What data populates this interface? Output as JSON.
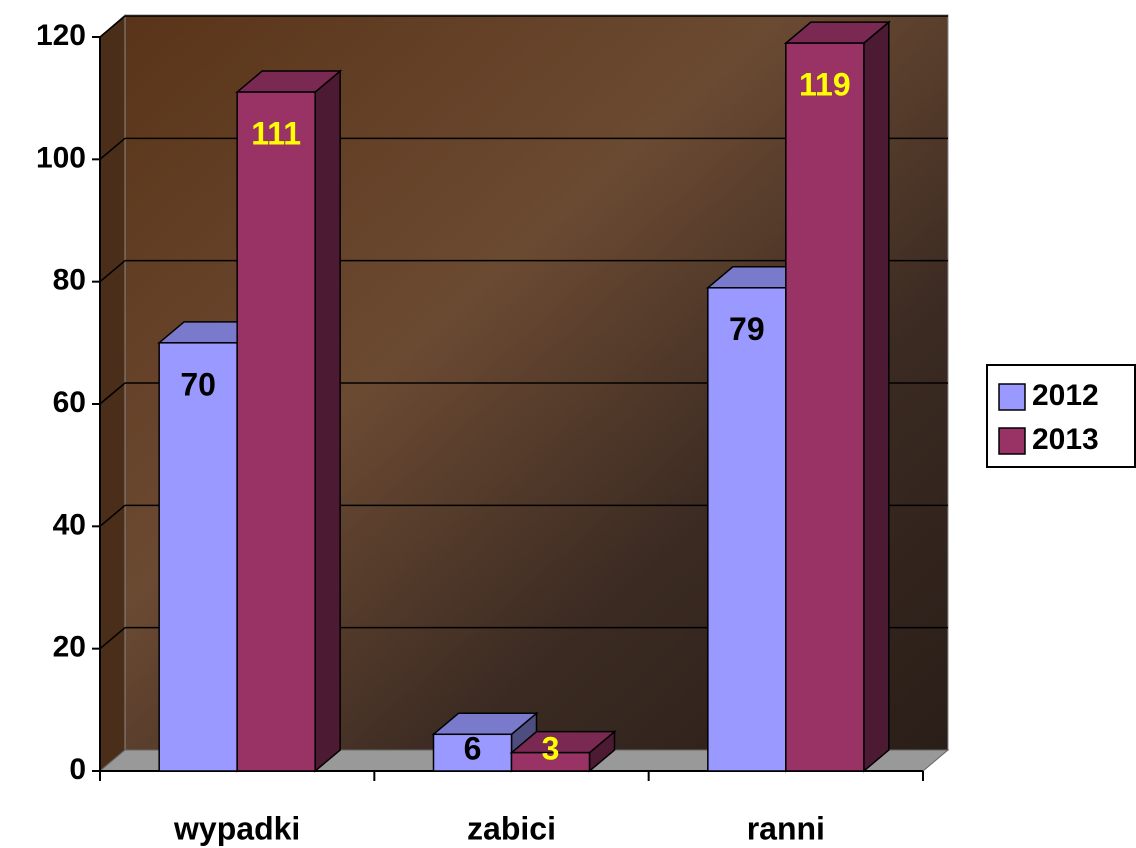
{
  "chart_data": {
    "type": "bar3d",
    "categories": [
      "wypadki",
      "zabici",
      "ranni"
    ],
    "series": [
      {
        "name": "2012",
        "color": "#9999ff",
        "label_color": "#000000",
        "values": [
          70,
          6,
          79
        ]
      },
      {
        "name": "2013",
        "color": "#993366",
        "label_color": "#ffff00",
        "values": [
          111,
          3,
          119
        ]
      }
    ],
    "ylim": [
      0,
      120
    ],
    "yticks": [
      0,
      20,
      40,
      60,
      80,
      100,
      120
    ],
    "grid": true,
    "legend": "right"
  }
}
